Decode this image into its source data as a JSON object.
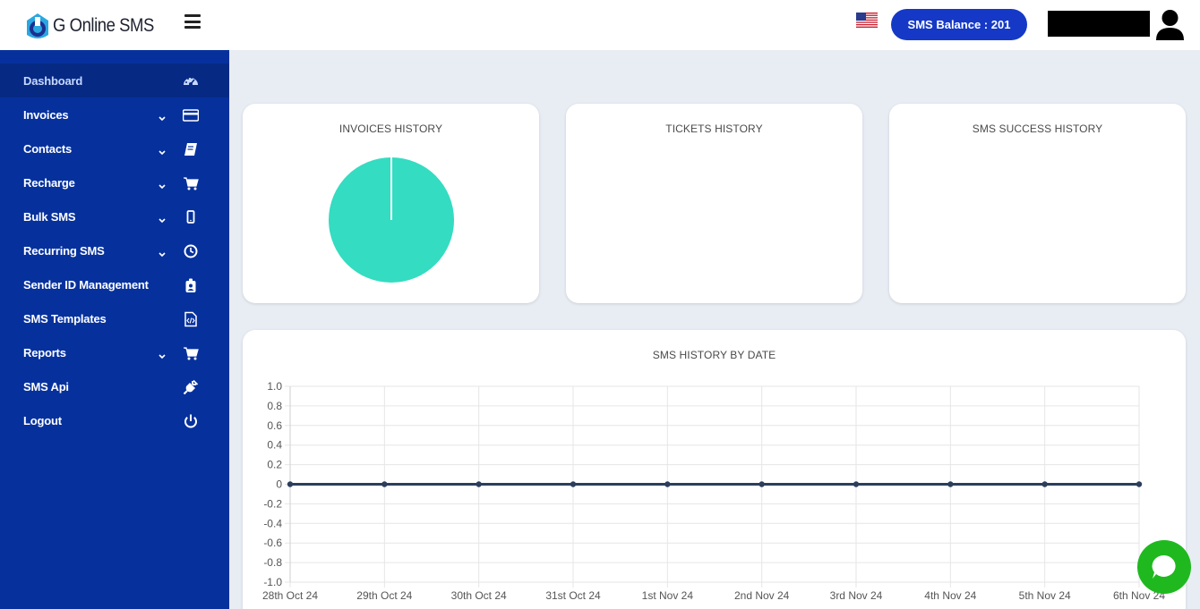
{
  "app": {
    "name": "G Online SMS"
  },
  "header": {
    "balance_label": "SMS Balance : 201",
    "language_icon": "us-flag-icon",
    "menu_icon": "hamburger-icon",
    "avatar_icon": "user-avatar-icon"
  },
  "sidebar": {
    "items": [
      {
        "label": "Dashboard",
        "icon": "dashboard-gauge-icon",
        "chevron": false,
        "active": true
      },
      {
        "label": "Invoices",
        "icon": "credit-card-icon",
        "chevron": true
      },
      {
        "label": "Contacts",
        "icon": "address-book-icon",
        "chevron": true
      },
      {
        "label": "Recharge",
        "icon": "shopping-cart-icon",
        "chevron": true
      },
      {
        "label": "Bulk SMS",
        "icon": "mobile-phone-icon",
        "chevron": true
      },
      {
        "label": "Recurring SMS",
        "icon": "clock-icon",
        "chevron": true
      },
      {
        "label": "Sender ID Management",
        "icon": "id-badge-icon",
        "chevron": false
      },
      {
        "label": "SMS Templates",
        "icon": "code-file-icon",
        "chevron": false
      },
      {
        "label": "Reports",
        "icon": "shopping-cart-icon",
        "chevron": true
      },
      {
        "label": "SMS Api",
        "icon": "plug-icon",
        "chevron": false
      },
      {
        "label": "Logout",
        "icon": "power-icon",
        "chevron": false
      }
    ]
  },
  "cards": {
    "invoices_title": "INVOICES HISTORY",
    "tickets_title": "TICKETS HISTORY",
    "sms_success_title": "SMS SUCCESS HISTORY",
    "sms_history_title": "SMS HISTORY BY DATE"
  },
  "colors": {
    "sidebar": "#06319d",
    "accent": "#1539c6",
    "pie_fill": "#34dcc1",
    "line": "#2b3e5c",
    "chat": "#1fb91f"
  },
  "chart_data": [
    {
      "type": "pie",
      "title": "INVOICES HISTORY",
      "values": [
        1
      ]
    },
    {
      "type": "line",
      "title": "SMS HISTORY BY DATE",
      "x": [
        "28th Oct 24",
        "29th Oct 24",
        "30th Oct 24",
        "31st Oct 24",
        "1st Nov 24",
        "2nd Nov 24",
        "3rd Nov 24",
        "4th Nov 24",
        "5th Nov 24",
        "6th Nov 24"
      ],
      "series": [
        {
          "values": [
            0,
            0,
            0,
            0,
            0,
            0,
            0,
            0,
            0,
            0
          ]
        }
      ],
      "ylim": [
        -1.0,
        1.0
      ],
      "yticks": [
        "1.0",
        "0.8",
        "0.6",
        "0.4",
        "0.2",
        "0",
        "-0.2",
        "-0.4",
        "-0.6",
        "-0.8",
        "-1.0"
      ],
      "grid": true
    }
  ],
  "chat": {
    "icon": "chat-bubble-icon"
  }
}
